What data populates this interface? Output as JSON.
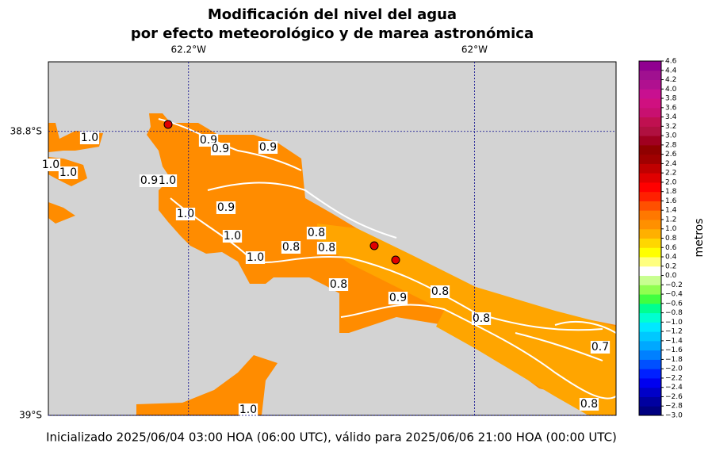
{
  "title": [
    "Modificación del nivel del agua",
    "por efecto meteorológico y de marea astronómica"
  ],
  "map": {
    "xlim": [
      -62.298,
      -61.901
    ],
    "ylim": [
      -39,
      -38.751
    ],
    "xticks": [
      {
        "value": -62.2,
        "label": "62.2°W"
      },
      {
        "value": -62,
        "label": "62°W"
      }
    ],
    "yticks": [
      {
        "value": -38.8,
        "label": "38.8°S"
      },
      {
        "value": -39,
        "label": "39°S"
      }
    ],
    "contour_labels": [
      "1.0",
      "0.9",
      "0.9",
      "0.9",
      "1.0",
      "1.0",
      "0.9",
      "1.0",
      "0.9",
      "1.0",
      "1.0",
      "0.8",
      "0.8",
      "0.8",
      "1.0",
      "0.8",
      "0.9",
      "0.8",
      "0.8",
      "0.7",
      "0.8",
      "1.0"
    ]
  },
  "colorbar": {
    "label": "metros",
    "ylim": [
      -3,
      4.6
    ],
    "colors": [
      "#000080",
      "#0000a0",
      "#0000c8",
      "#0000f0",
      "#0020ff",
      "#0050ff",
      "#0080ff",
      "#00a8ff",
      "#00c8ff",
      "#00e8ff",
      "#00ffd0",
      "#00ff90",
      "#40ff40",
      "#90ff50",
      "#c8ff90",
      "#ffffff",
      "#ffff80",
      "#ffff00",
      "#ffd700",
      "#ffb000",
      "#ff9000",
      "#ff7800",
      "#ff5000",
      "#ff2000",
      "#ff0000",
      "#e00000",
      "#c00000",
      "#a00000",
      "#900000",
      "#a00020",
      "#b01040",
      "#c01050",
      "#c81070",
      "#d01080",
      "#c81090",
      "#b01090",
      "#a01090",
      "#900090"
    ],
    "yticks": [
      {
        "value": -3,
        "label": "−3.0"
      },
      {
        "value": -2.8,
        "label": "−2.8"
      },
      {
        "value": -2.6,
        "label": "−2.6"
      },
      {
        "value": -2.4,
        "label": "−2.4"
      },
      {
        "value": -2.2,
        "label": "−2.2"
      },
      {
        "value": -2,
        "label": "−2.0"
      },
      {
        "value": -1.8,
        "label": "−1.8"
      },
      {
        "value": -1.6,
        "label": "−1.6"
      },
      {
        "value": -1.4,
        "label": "−1.4"
      },
      {
        "value": -1.2,
        "label": "−1.2"
      },
      {
        "value": -1,
        "label": "−1.0"
      },
      {
        "value": -0.8,
        "label": "−0.8"
      },
      {
        "value": -0.6,
        "label": "−0.6"
      },
      {
        "value": -0.4,
        "label": "−0.4"
      },
      {
        "value": -0.2,
        "label": "−0.2"
      },
      {
        "value": 0,
        "label": "0.0"
      },
      0.2,
      0.4,
      0.6,
      0.8,
      {
        "value": 1,
        "label": "1.0"
      },
      1.2,
      1.4,
      1.6,
      1.8,
      {
        "value": 2,
        "label": "2.0"
      },
      2.2,
      2.4,
      2.6,
      2.8,
      {
        "value": 3,
        "label": "3.0"
      },
      3.2,
      3.4,
      3.6,
      3.8,
      {
        "value": 4,
        "label": "4.0"
      },
      4.2,
      4.4,
      4.6
    ]
  },
  "footer": "Inicializado 2025/06/04 03:00 HOA (06:00 UTC), válido para 2025/06/06 21:00 HOA (00:00 UTC)"
}
